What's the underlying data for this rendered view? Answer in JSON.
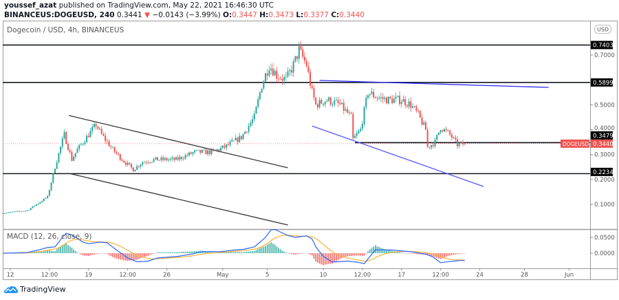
{
  "header": {
    "publisher": "youssef_azat",
    "published_text": "published on TradingView.com, May 22, 2021 16:46:30 UTC",
    "symbol": "BINANCEUS:DOGEUSD, 240",
    "last": "0.3441",
    "change": "−0.0143 (−3.99%)",
    "o_label": "O:",
    "o": "0.3447",
    "h_label": "H:",
    "h": "0.3473",
    "l_label": "L:",
    "l": "0.3377",
    "c_label": "C:",
    "c": "0.3440",
    "direction_icon": "triangle-down-icon"
  },
  "pane_title": "Dogecoin / USD, 4h, BINANCEUS",
  "currency_button": "USD",
  "macd_title": "MACD (12, 26, close, 9)",
  "footer": {
    "brand": "TradingView",
    "logo_icon": "tradingview-cloud-icon"
  },
  "colors": {
    "up": "#26a69a",
    "down": "#ef5350",
    "macd": "#2962ff",
    "signal": "#f9b233",
    "trend_blue": "#3f3fff",
    "level": "#131722"
  },
  "chart_data": {
    "type": "candlestick",
    "interval": "4h",
    "price_axis": {
      "ticks": [
        "0.7000",
        "0.5000",
        "0.4000",
        "0.3000",
        "0.2000",
        "0.1000"
      ],
      "range": [
        0.0,
        0.82
      ]
    },
    "time_axis": {
      "ticks": [
        {
          "label": "12",
          "date": "2021-04-12T00:00"
        },
        {
          "label": "12:00",
          "date": "2021-04-15T12:00"
        },
        {
          "label": "19",
          "date": "2021-04-19T00:00"
        },
        {
          "label": "12:00",
          "date": "2021-04-22T12:00"
        },
        {
          "label": "26",
          "date": "2021-04-26T00:00"
        },
        {
          "label": "May",
          "date": "2021-05-01T00:00"
        },
        {
          "label": "5",
          "date": "2021-05-05T00:00"
        },
        {
          "label": "10",
          "date": "2021-05-10T00:00"
        },
        {
          "label": "12:00",
          "date": "2021-05-13T12:00"
        },
        {
          "label": "17",
          "date": "2021-05-17T00:00"
        },
        {
          "label": "12:00",
          "date": "2021-05-20T12:00"
        },
        {
          "label": "24",
          "date": "2021-05-24T00:00"
        },
        {
          "label": "28",
          "date": "2021-05-28T00:00"
        },
        {
          "label": "Jun",
          "date": "2021-06-01T00:00"
        }
      ]
    },
    "close_path": [
      [
        "2021-04-11T08:00",
        0.065
      ],
      [
        "2021-04-13T12:00",
        0.075
      ],
      [
        "2021-04-14T08:00",
        0.1
      ],
      [
        "2021-04-15T08:00",
        0.13
      ],
      [
        "2021-04-16T00:00",
        0.25
      ],
      [
        "2021-04-16T12:00",
        0.33
      ],
      [
        "2021-04-16T20:00",
        0.38
      ],
      [
        "2021-04-17T12:00",
        0.28
      ],
      [
        "2021-04-18T00:00",
        0.32
      ],
      [
        "2021-04-19T00:00",
        0.38
      ],
      [
        "2021-04-19T16:00",
        0.42
      ],
      [
        "2021-04-20T04:00",
        0.38
      ],
      [
        "2021-04-21T04:00",
        0.32
      ],
      [
        "2021-04-22T00:00",
        0.28
      ],
      [
        "2021-04-23T00:00",
        0.24
      ],
      [
        "2021-04-23T20:00",
        0.27
      ],
      [
        "2021-04-25T00:00",
        0.28
      ],
      [
        "2021-04-26T20:00",
        0.28
      ],
      [
        "2021-04-28T12:00",
        0.31
      ],
      [
        "2021-04-30T00:00",
        0.31
      ],
      [
        "2021-05-01T04:00",
        0.33
      ],
      [
        "2021-05-02T16:00",
        0.37
      ],
      [
        "2021-05-03T20:00",
        0.45
      ],
      [
        "2021-05-04T12:00",
        0.58
      ],
      [
        "2021-05-05T04:00",
        0.66
      ],
      [
        "2021-05-05T20:00",
        0.62
      ],
      [
        "2021-05-06T16:00",
        0.6
      ],
      [
        "2021-05-07T08:00",
        0.66
      ],
      [
        "2021-05-07T20:00",
        0.72
      ],
      [
        "2021-05-08T12:00",
        0.66
      ],
      [
        "2021-05-09T00:00",
        0.55
      ],
      [
        "2021-05-09T08:00",
        0.5
      ],
      [
        "2021-05-10T08:00",
        0.52
      ],
      [
        "2021-05-11T12:00",
        0.5
      ],
      [
        "2021-05-12T12:00",
        0.45
      ],
      [
        "2021-05-12T16:00",
        0.36
      ],
      [
        "2021-05-13T08:00",
        0.4
      ],
      [
        "2021-05-14T00:00",
        0.55
      ],
      [
        "2021-05-14T20:00",
        0.53
      ],
      [
        "2021-05-15T20:00",
        0.52
      ],
      [
        "2021-05-17T00:00",
        0.52
      ],
      [
        "2021-05-17T20:00",
        0.5
      ],
      [
        "2021-05-18T12:00",
        0.46
      ],
      [
        "2021-05-19T04:00",
        0.4
      ],
      [
        "2021-05-19T08:00",
        0.33
      ],
      [
        "2021-05-20T00:00",
        0.35
      ],
      [
        "2021-05-20T12:00",
        0.41
      ],
      [
        "2021-05-21T08:00",
        0.38
      ],
      [
        "2021-05-22T00:00",
        0.34
      ],
      [
        "2021-05-22T16:00",
        0.344
      ]
    ],
    "last_candle": {
      "open": 0.3447,
      "high": 0.3473,
      "low": 0.3377,
      "close": 0.344
    },
    "levels": [
      {
        "price": 0.7403,
        "label": "0.7403",
        "from": "2021-04-11T00:00"
      },
      {
        "price": 0.5899,
        "label": "0.5899",
        "from": "2021-04-11T00:00"
      },
      {
        "price": 0.3479,
        "label": "0.3479",
        "from": "2021-05-12T20:00"
      },
      {
        "price": 0.2234,
        "label": "0.2234",
        "from": "2021-04-11T00:00"
      }
    ],
    "last_price": {
      "price": 0.344,
      "label": "0.3440",
      "symbol": "DOGEUSD"
    },
    "trendlines": [
      {
        "color": "#333333",
        "p1": [
          "2021-04-17T06:00",
          0.457
        ],
        "p2": [
          "2021-05-06T20:00",
          0.247
        ]
      },
      {
        "color": "#333333",
        "p1": [
          "2021-04-17T06:00",
          0.2245
        ],
        "p2": [
          "2021-05-06T20:00",
          0.017
        ]
      },
      {
        "color": "#2a2aff",
        "p1": [
          "2021-05-09T16:00",
          0.598
        ],
        "p2": [
          "2021-05-30T04:00",
          0.57
        ]
      },
      {
        "color": "#5555ff",
        "p1": [
          "2021-05-09T00:00",
          0.415
        ],
        "p2": [
          "2021-05-24T08:00",
          0.172
        ]
      }
    ],
    "macd": {
      "axis_ticks": [
        "0.0500",
        "0.0000"
      ],
      "macd_path": [
        [
          "2021-04-11T08:00",
          0
        ],
        [
          "2021-04-13T12:00",
          0.002
        ],
        [
          "2021-04-14T12:00",
          0.01
        ],
        [
          "2021-04-15T08:00",
          0.018
        ],
        [
          "2021-04-16T00:00",
          0.02
        ],
        [
          "2021-04-16T16:00",
          0.05
        ],
        [
          "2021-04-17T00:00",
          0.063
        ],
        [
          "2021-04-17T12:00",
          0.058
        ],
        [
          "2021-04-18T12:00",
          0.035
        ],
        [
          "2021-04-19T00:00",
          0.03
        ],
        [
          "2021-04-20T00:00",
          0.035
        ],
        [
          "2021-04-20T16:00",
          0.033
        ],
        [
          "2021-04-21T12:00",
          0.01
        ],
        [
          "2021-04-22T12:00",
          -0.015
        ],
        [
          "2021-04-23T08:00",
          -0.027
        ],
        [
          "2021-04-24T08:00",
          -0.025
        ],
        [
          "2021-04-25T04:00",
          -0.015
        ],
        [
          "2021-04-27T00:00",
          -0.01
        ],
        [
          "2021-04-28T08:00",
          -0.002
        ],
        [
          "2021-04-29T04:00",
          0.005
        ],
        [
          "2021-04-30T20:00",
          0.005
        ],
        [
          "2021-05-02T00:00",
          0.01
        ],
        [
          "2021-05-02T20:00",
          0.012
        ],
        [
          "2021-05-03T20:00",
          0.02
        ],
        [
          "2021-05-04T20:00",
          0.05
        ],
        [
          "2021-05-05T08:00",
          0.074
        ],
        [
          "2021-05-05T16:00",
          0.075
        ],
        [
          "2021-05-06T20:00",
          0.056
        ],
        [
          "2021-05-07T12:00",
          0.05
        ],
        [
          "2021-05-08T12:00",
          0.055
        ],
        [
          "2021-05-09T00:00",
          0.045
        ],
        [
          "2021-05-09T08:00",
          0.02
        ],
        [
          "2021-05-10T00:00",
          -0.01
        ],
        [
          "2021-05-10T20:00",
          -0.028
        ],
        [
          "2021-05-12T04:00",
          -0.025
        ],
        [
          "2021-05-13T00:00",
          -0.028
        ],
        [
          "2021-05-13T16:00",
          -0.033
        ],
        [
          "2021-05-14T16:00",
          0.011
        ],
        [
          "2021-05-16T04:00",
          0.01
        ],
        [
          "2021-05-18T00:00",
          0.004
        ],
        [
          "2021-05-19T04:00",
          -0.003
        ],
        [
          "2021-05-19T20:00",
          -0.012
        ],
        [
          "2021-05-20T12:00",
          -0.03
        ],
        [
          "2021-05-21T08:00",
          -0.026
        ],
        [
          "2021-05-22T08:00",
          -0.023
        ],
        [
          "2021-05-22T16:00",
          -0.023
        ]
      ]
    }
  }
}
